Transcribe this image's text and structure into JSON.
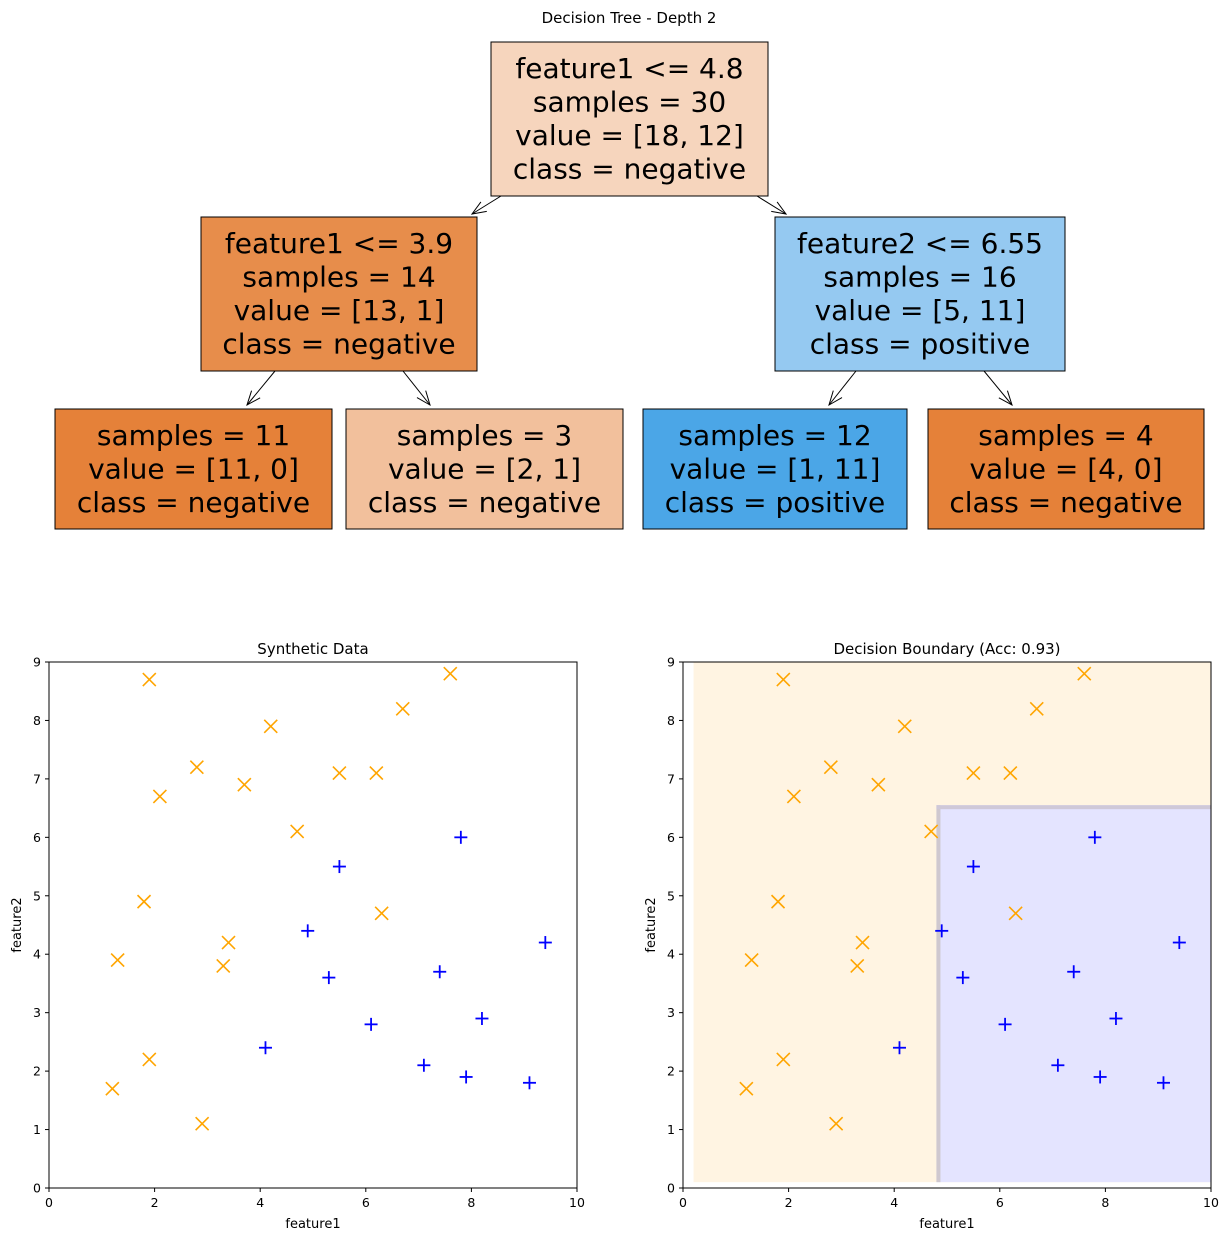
{
  "tree": {
    "title": "Decision Tree - Depth 2",
    "nodes": [
      {
        "id": "root",
        "lines": [
          "feature1 <= 4.8",
          "samples = 30",
          "value = [18, 12]",
          "class = negative"
        ],
        "fill": "#f6d5bd"
      },
      {
        "id": "left",
        "lines": [
          "feature1 <= 3.9",
          "samples = 14",
          "value = [13, 1]",
          "class = negative"
        ],
        "fill": "#e78d4b"
      },
      {
        "id": "right",
        "lines": [
          "feature2 <= 6.55",
          "samples = 16",
          "value = [5, 11]",
          "class = positive"
        ],
        "fill": "#95c9f1"
      },
      {
        "id": "leaf-ll",
        "lines": [
          "samples = 11",
          "value = [11, 0]",
          "class = negative"
        ],
        "fill": "#e58139"
      },
      {
        "id": "leaf-lr",
        "lines": [
          "samples = 3",
          "value = [2, 1]",
          "class = negative"
        ],
        "fill": "#f2c09c"
      },
      {
        "id": "leaf-rl",
        "lines": [
          "samples = 12",
          "value = [1, 11]",
          "class = positive"
        ],
        "fill": "#4ba6e7"
      },
      {
        "id": "leaf-rr",
        "lines": [
          "samples = 4",
          "value = [4, 0]",
          "class = negative"
        ],
        "fill": "#e58139"
      }
    ],
    "edges": [
      [
        "root",
        "left"
      ],
      [
        "root",
        "right"
      ],
      [
        "left",
        "leaf-ll"
      ],
      [
        "left",
        "leaf-lr"
      ],
      [
        "right",
        "leaf-rl"
      ],
      [
        "right",
        "leaf-rr"
      ]
    ]
  },
  "chart_data": [
    {
      "type": "scatter",
      "title": "Synthetic Data",
      "xlabel": "feature1",
      "ylabel": "feature2",
      "xlim": [
        0,
        10
      ],
      "ylim": [
        0,
        9
      ],
      "xticks": [
        0,
        2,
        4,
        6,
        8,
        10
      ],
      "yticks": [
        0,
        1,
        2,
        3,
        4,
        5,
        6,
        7,
        8,
        9
      ],
      "grid": false,
      "series": [
        {
          "marker": "x",
          "color": "#ffa500",
          "points": [
            [
              1.9,
              8.7
            ],
            [
              7.6,
              8.8
            ],
            [
              6.7,
              8.2
            ],
            [
              4.2,
              7.9
            ],
            [
              2.8,
              7.2
            ],
            [
              5.5,
              7.1
            ],
            [
              6.2,
              7.1
            ],
            [
              3.7,
              6.9
            ],
            [
              2.1,
              6.7
            ],
            [
              4.7,
              6.1
            ],
            [
              1.8,
              4.9
            ],
            [
              6.3,
              4.7
            ],
            [
              3.4,
              4.2
            ],
            [
              1.3,
              3.9
            ],
            [
              3.3,
              3.8
            ],
            [
              1.9,
              2.2
            ],
            [
              1.2,
              1.7
            ],
            [
              2.9,
              1.1
            ]
          ]
        },
        {
          "marker": "+",
          "color": "#0000ff",
          "points": [
            [
              7.8,
              6.0
            ],
            [
              5.5,
              5.5
            ],
            [
              4.9,
              4.4
            ],
            [
              9.4,
              4.2
            ],
            [
              7.4,
              3.7
            ],
            [
              5.3,
              3.6
            ],
            [
              8.2,
              2.9
            ],
            [
              6.1,
              2.8
            ],
            [
              4.1,
              2.4
            ],
            [
              7.1,
              2.1
            ],
            [
              7.9,
              1.9
            ],
            [
              9.1,
              1.8
            ]
          ]
        }
      ]
    },
    {
      "type": "scatter",
      "title": "Decision Boundary (Acc: 0.93)",
      "xlabel": "feature1",
      "ylabel": "feature2",
      "xlim": [
        0,
        10
      ],
      "ylim": [
        0,
        9
      ],
      "xticks": [
        0,
        2,
        4,
        6,
        8,
        10
      ],
      "yticks": [
        0,
        1,
        2,
        3,
        4,
        5,
        6,
        7,
        8,
        9
      ],
      "grid": false,
      "regions": [
        {
          "class": "negative",
          "color": "#fff4e2",
          "x": [
            0.2,
            10
          ],
          "y": [
            0.1,
            9
          ]
        },
        {
          "class": "positive",
          "color": "#e4e4ff",
          "x": [
            4.8,
            10
          ],
          "y": [
            0.1,
            6.55
          ]
        }
      ],
      "series": [
        {
          "marker": "x",
          "color": "#ffa500",
          "points": [
            [
              1.9,
              8.7
            ],
            [
              7.6,
              8.8
            ],
            [
              6.7,
              8.2
            ],
            [
              4.2,
              7.9
            ],
            [
              2.8,
              7.2
            ],
            [
              5.5,
              7.1
            ],
            [
              6.2,
              7.1
            ],
            [
              3.7,
              6.9
            ],
            [
              2.1,
              6.7
            ],
            [
              4.7,
              6.1
            ],
            [
              1.8,
              4.9
            ],
            [
              6.3,
              4.7
            ],
            [
              3.4,
              4.2
            ],
            [
              1.3,
              3.9
            ],
            [
              3.3,
              3.8
            ],
            [
              1.9,
              2.2
            ],
            [
              1.2,
              1.7
            ],
            [
              2.9,
              1.1
            ]
          ]
        },
        {
          "marker": "+",
          "color": "#0000ff",
          "points": [
            [
              7.8,
              6.0
            ],
            [
              5.5,
              5.5
            ],
            [
              4.9,
              4.4
            ],
            [
              9.4,
              4.2
            ],
            [
              7.4,
              3.7
            ],
            [
              5.3,
              3.6
            ],
            [
              8.2,
              2.9
            ],
            [
              6.1,
              2.8
            ],
            [
              4.1,
              2.4
            ],
            [
              7.1,
              2.1
            ],
            [
              7.9,
              1.9
            ],
            [
              9.1,
              1.8
            ]
          ]
        }
      ]
    }
  ]
}
